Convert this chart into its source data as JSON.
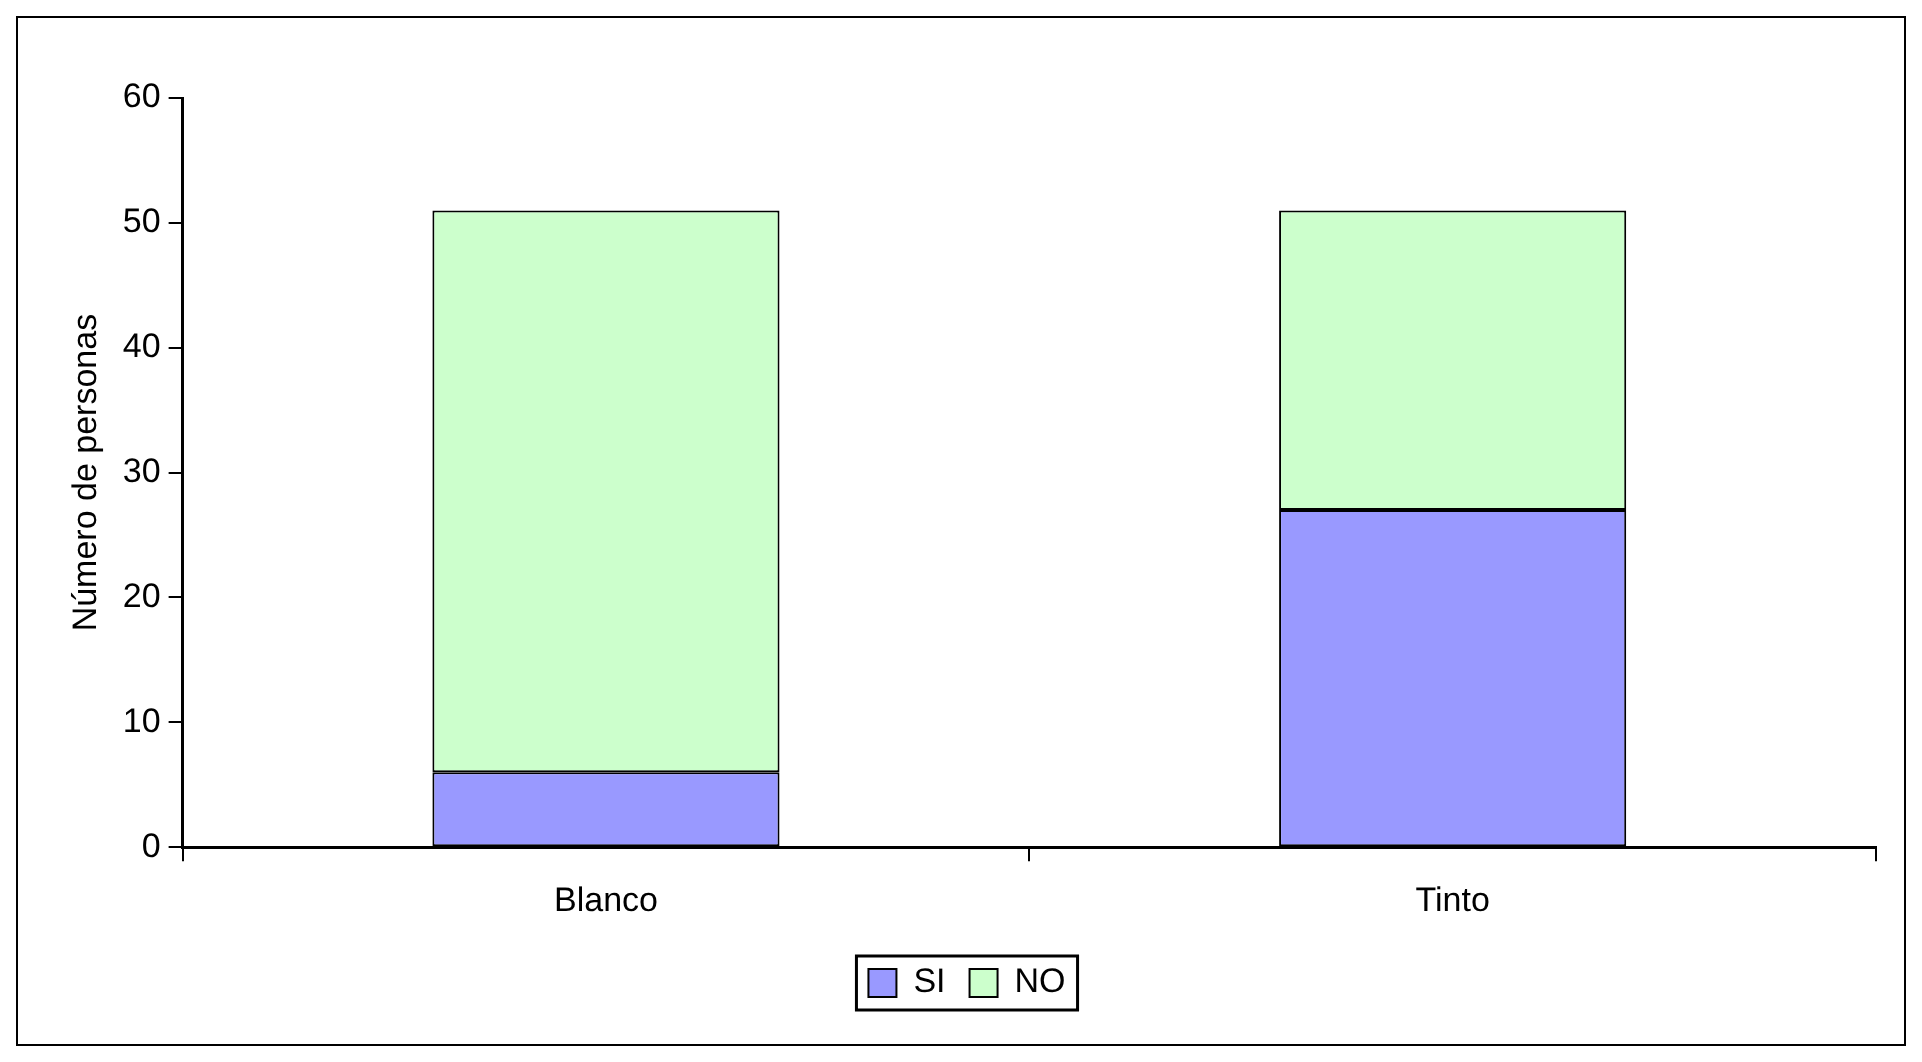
{
  "chart_data": {
    "type": "bar",
    "ylabel": "Número de personas",
    "categories": [
      "Blanco",
      "Tinto"
    ],
    "stacked": true,
    "series": [
      {
        "name": "SI",
        "color": "#9999ff",
        "values": [
          6,
          27
        ]
      },
      {
        "name": "NO",
        "color": "#ccffcc",
        "values": [
          45,
          24
        ]
      }
    ],
    "ylim": [
      0,
      60
    ],
    "yticks": [
      0,
      10,
      20,
      30,
      40,
      50,
      60
    ],
    "grid": false,
    "legend": "bottom"
  }
}
